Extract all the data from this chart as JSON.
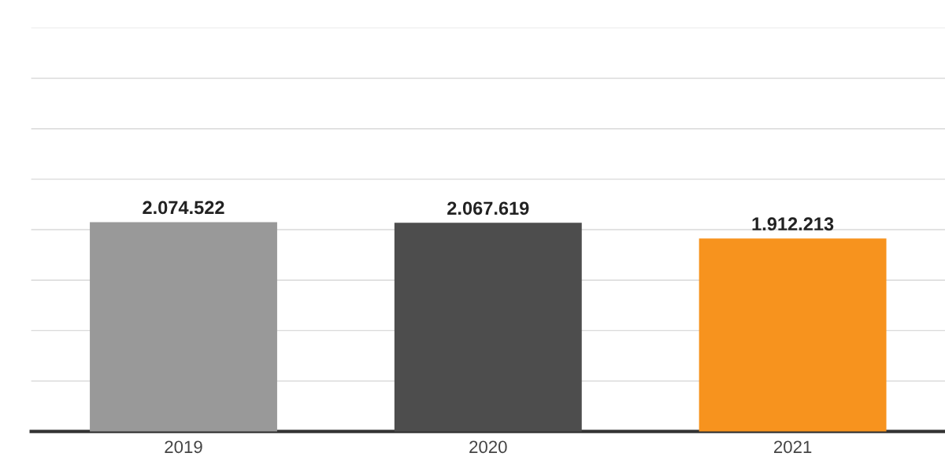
{
  "chart_data": {
    "type": "bar",
    "categories": [
      "2019",
      "2020",
      "2021"
    ],
    "values": [
      2074522,
      2067619,
      1912213
    ],
    "colors": [
      "#999999",
      "#4d4d4d",
      "#f7931e"
    ],
    "value_labels": [
      "2.074.522",
      "2.067.619",
      "1.912.213"
    ],
    "ylim": [
      0,
      4000000
    ],
    "yticks": [
      {
        "value": 0,
        "label": null
      },
      {
        "value": 500000,
        "label": null
      },
      {
        "value": 1000000,
        "label": null
      },
      {
        "value": 1500000,
        "label": null
      },
      {
        "value": 2000000,
        "label": null
      },
      {
        "value": 2500000,
        "label": null
      },
      {
        "value": 3000000,
        "label": null
      },
      {
        "value": 3500000,
        "label": null
      },
      {
        "value": 4000000,
        "label": null
      }
    ],
    "grid": "y",
    "tick_labels": "x",
    "legend": false
  }
}
